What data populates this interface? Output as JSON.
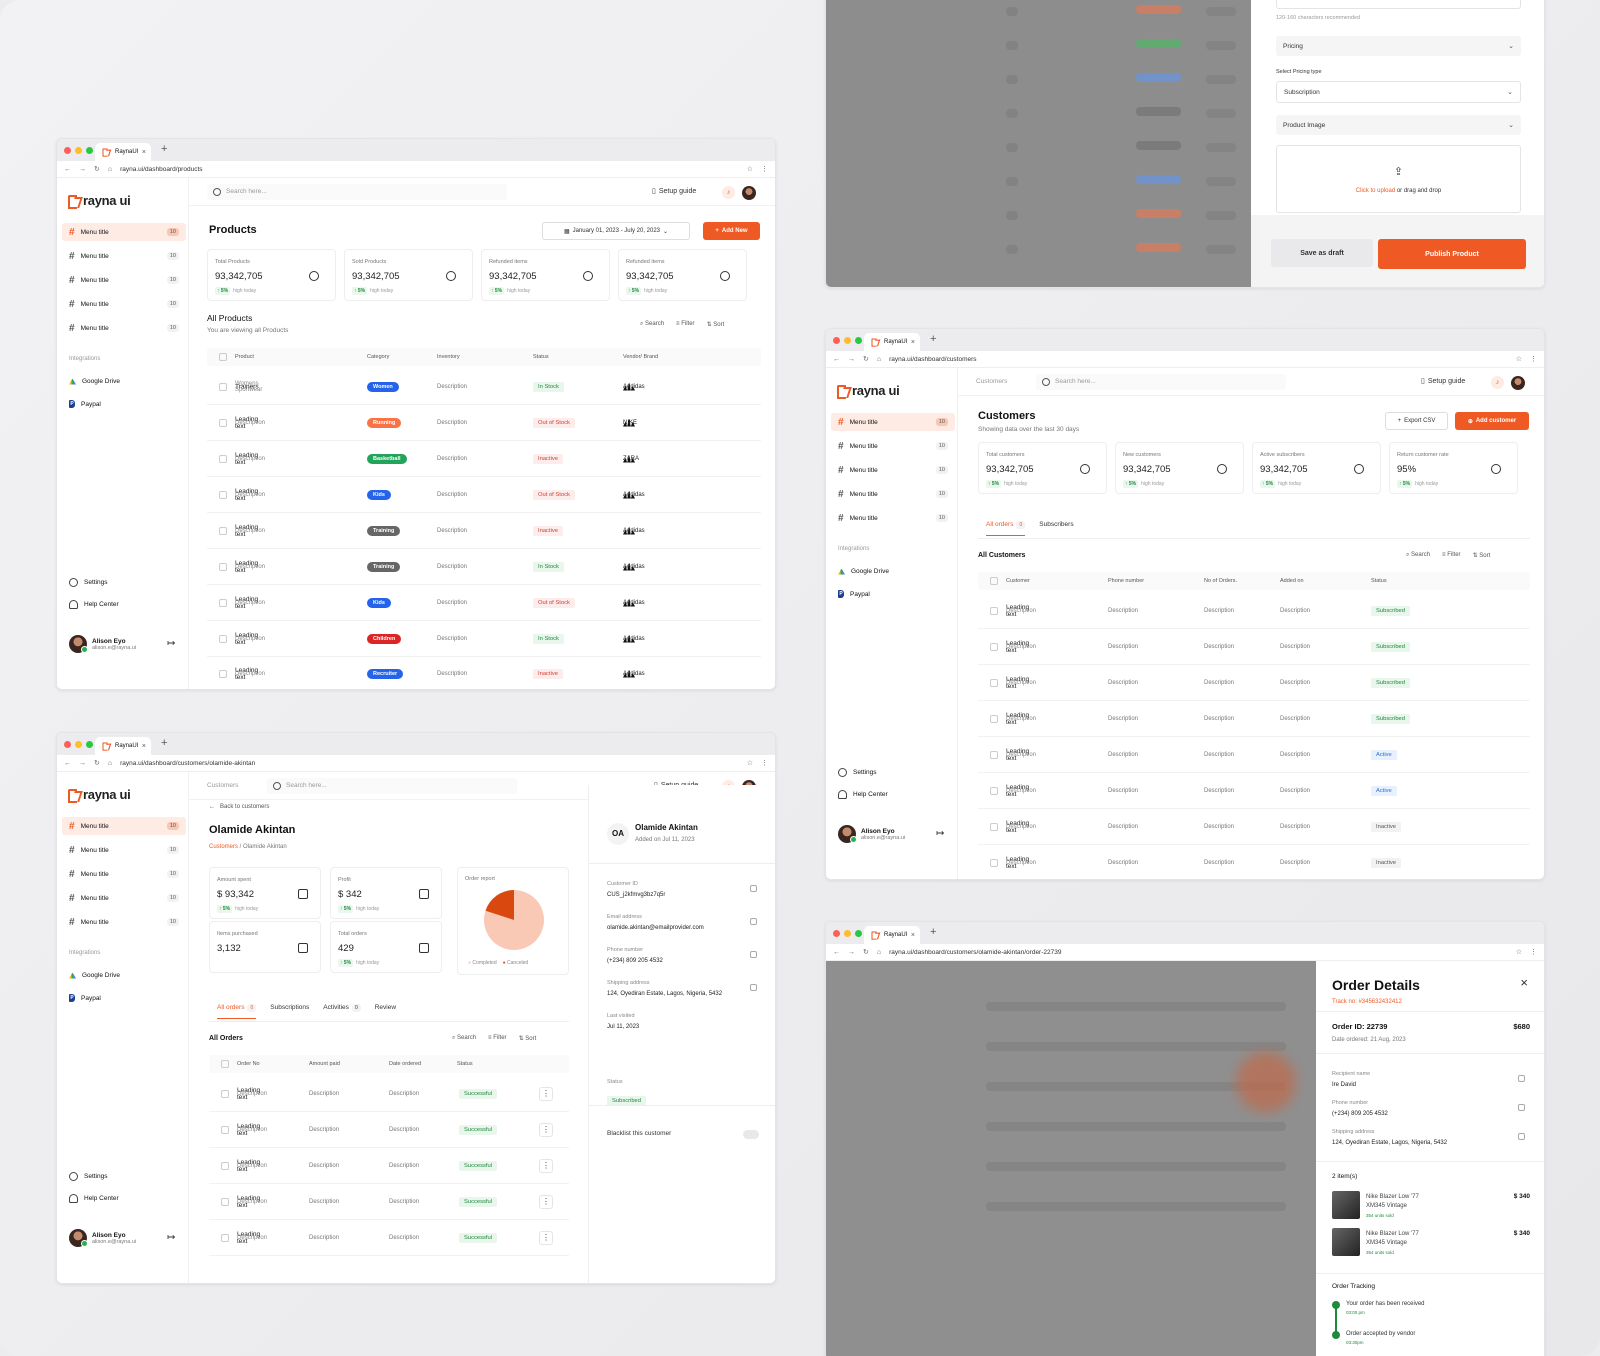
{
  "brand": {
    "logo_text": "rayna ui",
    "tab_title": "RaynaUI",
    "accent": "#ef5a24"
  },
  "sidebar": {
    "menu_item_label": "Menu title",
    "menu_item_count": "10",
    "integrations_label": "Integrations",
    "integrations": [
      "Google Drive",
      "Paypal"
    ],
    "settings": "Settings",
    "help": "Help Center",
    "user_name": "Alison Eyo",
    "user_email": "alison.e@rayna.ui"
  },
  "topbar": {
    "search_placeholder": "Search here...",
    "setup_guide": "Setup guide"
  },
  "products": {
    "url": "rayna.ui/dashboard/products",
    "title": "Products",
    "date_range": "January 01, 2023 - July 20, 2023",
    "add_new": "Add New",
    "stats": [
      {
        "label": "Total Products",
        "value": "93,342,705",
        "delta": "5%",
        "note": "high today"
      },
      {
        "label": "Sold Products",
        "value": "93,342,705",
        "delta": "5%",
        "note": "high today"
      },
      {
        "label": "Refunded items",
        "value": "93,342,705",
        "delta": "5%",
        "note": "high today"
      },
      {
        "label": "Refunded items",
        "value": "93,342,705",
        "delta": "5%",
        "note": "high today"
      }
    ],
    "section_title": "All Products",
    "section_sub": "You are viewing all Products",
    "tools": [
      "Search",
      "Filter",
      "Sort"
    ],
    "columns": [
      "Product",
      "Category",
      "Inventory",
      "Status",
      "Vendor/ Brand"
    ],
    "rows": [
      {
        "name": "Trainers",
        "sub": "Womens Sportwear",
        "cat": "Women",
        "cat_color": "#2563eb",
        "inv": "Description",
        "status": "In Stock",
        "st": "green",
        "brand": "Addidas"
      },
      {
        "name": "Leading text",
        "sub": "Description",
        "cat": "Running",
        "cat_color": "#f97345",
        "inv": "Description",
        "status": "Out of Stock",
        "st": "red",
        "brand": "NIKE"
      },
      {
        "name": "Leading text",
        "sub": "Description",
        "cat": "Basketball",
        "cat_color": "#22a55a",
        "inv": "Description",
        "status": "Inactive",
        "st": "red",
        "brand": "ZARA"
      },
      {
        "name": "Leading text",
        "sub": "Description",
        "cat": "Kids",
        "cat_color": "#2563eb",
        "inv": "Description",
        "status": "Out of Stock",
        "st": "red",
        "brand": "Addidas"
      },
      {
        "name": "Leading text",
        "sub": "Description",
        "cat": "Training",
        "cat_color": "#666666",
        "inv": "Description",
        "status": "Inactive",
        "st": "red",
        "brand": "Addidas"
      },
      {
        "name": "Leading text",
        "sub": "Description",
        "cat": "Training",
        "cat_color": "#666666",
        "inv": "Description",
        "status": "In Stock",
        "st": "green",
        "brand": "Addidas"
      },
      {
        "name": "Leading text",
        "sub": "Description",
        "cat": "Kids",
        "cat_color": "#2563eb",
        "inv": "Description",
        "status": "Out of Stock",
        "st": "red",
        "brand": "Addidas"
      },
      {
        "name": "Leading text",
        "sub": "Description",
        "cat": "Children",
        "cat_color": "#dc2626",
        "inv": "Description",
        "status": "In Stock",
        "st": "green",
        "brand": "Addidas"
      },
      {
        "name": "Leading text",
        "sub": "Description",
        "cat": "Recruiter",
        "cat_color": "#2563eb",
        "inv": "Description",
        "status": "Inactive",
        "st": "red",
        "brand": "Addidas"
      }
    ]
  },
  "product_form": {
    "hint": "120-160 characters recommended",
    "pricing": "Pricing",
    "pricing_type_label": "Select Pricing type",
    "pricing_type": "Subscription",
    "product_image": "Product Image",
    "upload_link": "Click to upload",
    "upload_rest": "or drag and drop",
    "save_draft": "Save as draft",
    "publish": "Publish Product"
  },
  "customers": {
    "url": "rayna.ui/dashboard/customers",
    "crumb": "Customers",
    "title": "Customers",
    "sub": "Showing data over the last 30 days",
    "export": "Export CSV",
    "add": "Add customer",
    "stats": [
      {
        "label": "Total customers",
        "value": "93,342,705",
        "delta": "5%",
        "note": "high today"
      },
      {
        "label": "New customers",
        "value": "93,342,705",
        "delta": "5%",
        "note": "high today"
      },
      {
        "label": "Active subscribers",
        "value": "93,342,705",
        "delta": "5%",
        "note": "high today"
      },
      {
        "label": "Return customer rate",
        "value": "95%",
        "delta": "5%",
        "note": "high today"
      }
    ],
    "tabs": [
      {
        "label": "All orders",
        "count": "0"
      },
      {
        "label": "Subscribers"
      }
    ],
    "section_title": "All Customers",
    "columns": [
      "Customer",
      "Phone number",
      "No of Orders.",
      "Added on",
      "Status"
    ],
    "rows": [
      {
        "name": "Leading text",
        "sub": "Description",
        "phone": "Description",
        "orders": "Description",
        "added": "Description",
        "status": "Subscribed",
        "st": "green"
      },
      {
        "name": "Leading text",
        "sub": "Description",
        "phone": "Description",
        "orders": "Description",
        "added": "Description",
        "status": "Subscribed",
        "st": "green"
      },
      {
        "name": "Leading text",
        "sub": "Description",
        "phone": "Description",
        "orders": "Description",
        "added": "Description",
        "status": "Subscribed",
        "st": "green"
      },
      {
        "name": "Leading text",
        "sub": "Description",
        "phone": "Description",
        "orders": "Description",
        "added": "Description",
        "status": "Subscribed",
        "st": "green"
      },
      {
        "name": "Leading text",
        "sub": "Description",
        "phone": "Description",
        "orders": "Description",
        "added": "Description",
        "status": "Active",
        "st": "blue"
      },
      {
        "name": "Leading text",
        "sub": "Description",
        "phone": "Description",
        "orders": "Description",
        "added": "Description",
        "status": "Active",
        "st": "blue"
      },
      {
        "name": "Leading text",
        "sub": "Description",
        "phone": "Description",
        "orders": "Description",
        "added": "Description",
        "status": "Inactive",
        "st": "grey"
      },
      {
        "name": "Leading text",
        "sub": "Description",
        "phone": "Description",
        "orders": "Description",
        "added": "Description",
        "status": "Inactive",
        "st": "grey"
      }
    ]
  },
  "customer_detail": {
    "url": "rayna.ui/dashboard/customers/olamide-akintan",
    "back": "Back to customers",
    "name": "Olamide Akintan",
    "crumb_parent": "Customers",
    "crumb_current": "Olamide Akintan",
    "stats": [
      {
        "label": "Amount spent",
        "value": "$ 93,342",
        "delta": "5%",
        "note": "high today"
      },
      {
        "label": "Profit",
        "value": "$ 342",
        "delta": "5%",
        "note": "high today"
      },
      {
        "label": "Items purchased",
        "value": "3,132"
      },
      {
        "label": "Total orders",
        "value": "429",
        "delta": "5%",
        "note": "high today"
      }
    ],
    "order_report": {
      "title": "Order report",
      "legend": [
        "Completed",
        "Canceled"
      ],
      "values": [
        80,
        20
      ]
    },
    "tabs": [
      {
        "label": "All orders",
        "count": "0"
      },
      {
        "label": "Subscriptions"
      },
      {
        "label": "Activities",
        "count": "0"
      },
      {
        "label": "Review"
      }
    ],
    "section_title": "All Orders",
    "columns": [
      "Order No",
      "Amount paid",
      "Date ordered",
      "Status"
    ],
    "rows": [
      {
        "name": "Leading text",
        "sub": "Description",
        "amount": "Description",
        "date": "Description",
        "status": "Successful"
      },
      {
        "name": "Leading text",
        "sub": "Description",
        "amount": "Description",
        "date": "Description",
        "status": "Successful"
      },
      {
        "name": "Leading text",
        "sub": "Description",
        "amount": "Description",
        "date": "Description",
        "status": "Successful"
      },
      {
        "name": "Leading text",
        "sub": "Description",
        "amount": "Description",
        "date": "Description",
        "status": "Successful"
      },
      {
        "name": "Leading text",
        "sub": "Description",
        "amount": "Description",
        "date": "Description",
        "status": "Successful"
      }
    ],
    "panel": {
      "initials": "OA",
      "name": "Olamide Akintan",
      "added": "Added on Jul 11, 2023",
      "fields": [
        {
          "k": "Customer ID",
          "v": "CUS_j2kfmvg3bz7q5r"
        },
        {
          "k": "Email address",
          "v": "olamide.akintan@emailprovider.com"
        },
        {
          "k": "Phone number",
          "v": "(+234) 809 205 4532"
        },
        {
          "k": "Shipping address",
          "v": "124, Oyediran Estate, Lagos, Nigeria, 5432"
        },
        {
          "k": "Last visited",
          "v": "Jul 11, 2023"
        }
      ],
      "status_label": "Status",
      "status": "Subscribed",
      "blacklist": "Blacklist this customer"
    }
  },
  "order": {
    "url": "rayna.ui/dashboard/customers/olamide-akintan/order-22739",
    "title": "Order Details",
    "track": "Track no: #345632432412",
    "order_id": "Order ID: 22739",
    "total": "$680",
    "date": "Date ordered: 21 Aug, 2023",
    "fields": [
      {
        "k": "Recipient name",
        "v": "Ire David"
      },
      {
        "k": "Phone number",
        "v": "(+234) 809 205 4532"
      },
      {
        "k": "Shipping address",
        "v": "124, Oyediran Estate, Lagos, Nigeria, 5432"
      }
    ],
    "items_label": "2 item(s)",
    "items": [
      {
        "name": "Nike Blazer Low '77",
        "variant": "XM345 Vintage",
        "sold": "354 units sold",
        "price": "$ 340"
      },
      {
        "name": "Nike Blazer Low '77",
        "variant": "XM345 Vintage",
        "sold": "354 units sold",
        "price": "$ 340"
      }
    ],
    "tracking_label": "Order Tracking",
    "tracking": [
      {
        "text": "Your order has been received",
        "time": "03:00 pm"
      },
      {
        "text": "Order accepted by vendor",
        "time": "03:30pm"
      }
    ]
  }
}
